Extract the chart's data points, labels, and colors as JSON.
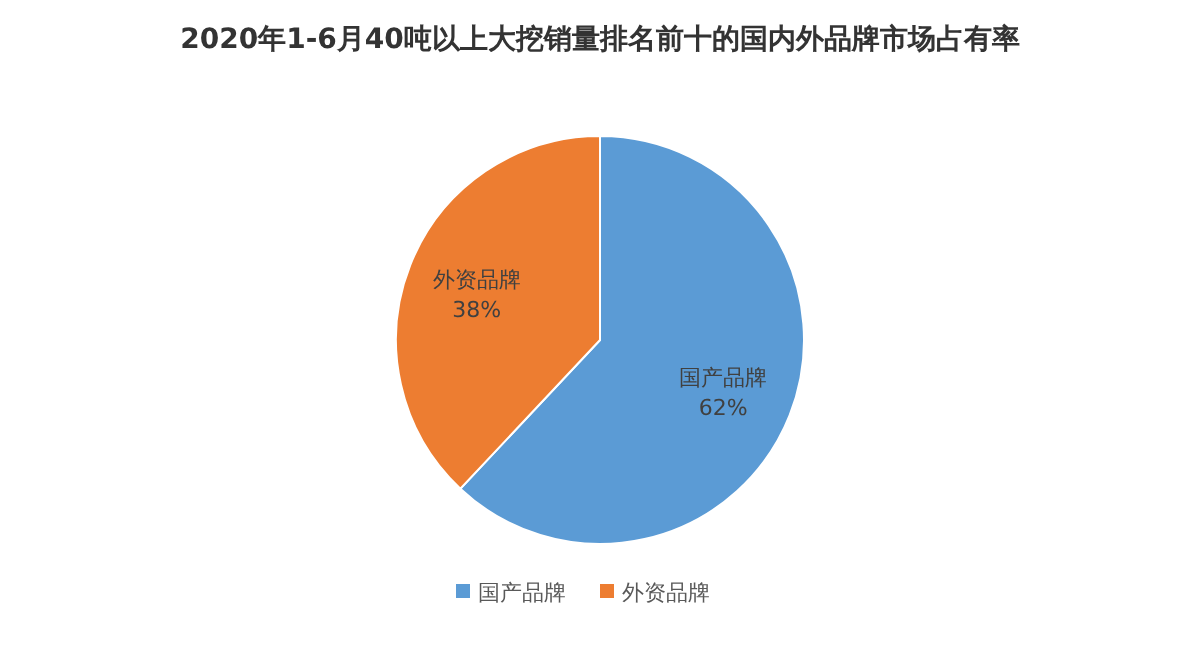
{
  "chart_data": {
    "type": "pie",
    "title": "2020年1-6月40吨以上大挖销量排名前十的国内外品牌市场占有率",
    "categories": [
      "国产品牌",
      "外资品牌"
    ],
    "values": [
      62,
      38
    ],
    "value_labels": [
      "62%",
      "38%"
    ],
    "colors": [
      "#5b9bd5",
      "#ed7d31"
    ],
    "legend": "bottom"
  }
}
